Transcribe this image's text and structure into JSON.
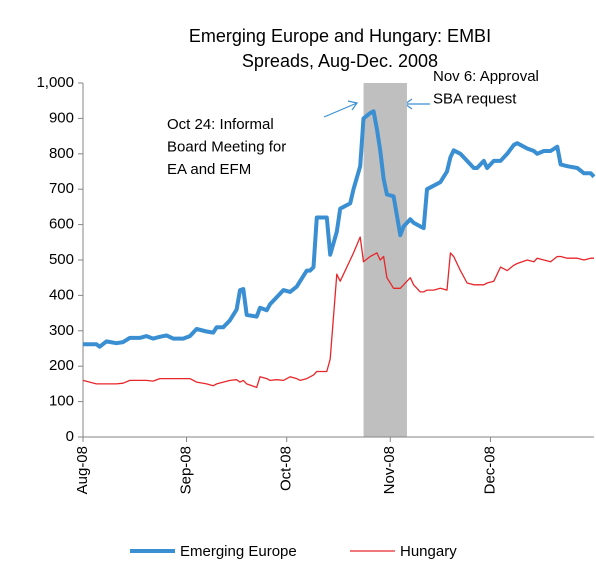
{
  "chart_data": {
    "type": "line",
    "title": [
      "Emerging Europe and Hungary: EMBI",
      "Spreads, Aug-Dec. 2008"
    ],
    "annotations": [
      {
        "lines": [
          "Oct 24: Informal",
          "Board Meeting for",
          "EA and EFM"
        ]
      },
      {
        "lines": [
          "Nov 6: Approval",
          "SBA request"
        ]
      }
    ],
    "shaded_x": [
      84,
      97
    ],
    "x": [
      0,
      4,
      5,
      7,
      10,
      12,
      14,
      17,
      19,
      21,
      23,
      25,
      27,
      30,
      32,
      34,
      37,
      39,
      40,
      42,
      44,
      46,
      47,
      48,
      49,
      52,
      53,
      55,
      56,
      58,
      60,
      62,
      64,
      65,
      67,
      68,
      69,
      70,
      73,
      74,
      76,
      77,
      80,
      81,
      83,
      84,
      86,
      87,
      88,
      89,
      90,
      91,
      93,
      95,
      96,
      98,
      99,
      101,
      102,
      103,
      105,
      107,
      109,
      110,
      111,
      113,
      115,
      117,
      118,
      120,
      121,
      123,
      125,
      127,
      129,
      130,
      133,
      135,
      136,
      138,
      140,
      142,
      143,
      145,
      148,
      150,
      152,
      153
    ],
    "series": [
      {
        "name": "Emerging Europe",
        "color": "#3a8fd2",
        "values": [
          262,
          262,
          255,
          270,
          265,
          268,
          280,
          280,
          285,
          278,
          283,
          287,
          278,
          278,
          285,
          305,
          298,
          295,
          310,
          310,
          330,
          360,
          415,
          418,
          345,
          340,
          365,
          358,
          375,
          395,
          415,
          410,
          425,
          440,
          470,
          470,
          480,
          620,
          620,
          515,
          580,
          645,
          660,
          700,
          765,
          900,
          915,
          920,
          870,
          810,
          730,
          685,
          680,
          570,
          595,
          615,
          605,
          595,
          590,
          700,
          710,
          720,
          750,
          790,
          810,
          800,
          780,
          760,
          760,
          780,
          760,
          780,
          780,
          800,
          825,
          830,
          815,
          808,
          800,
          808,
          808,
          820,
          770,
          765,
          760,
          745,
          745,
          735
        ]
      },
      {
        "name": "Hungary",
        "color": "#e8262a",
        "values": [
          160,
          150,
          150,
          150,
          150,
          152,
          160,
          160,
          160,
          158,
          165,
          165,
          165,
          165,
          165,
          155,
          150,
          145,
          150,
          155,
          160,
          162,
          155,
          160,
          150,
          140,
          170,
          165,
          160,
          162,
          160,
          170,
          165,
          160,
          165,
          170,
          175,
          185,
          185,
          220,
          460,
          440,
          500,
          520,
          565,
          495,
          510,
          515,
          520,
          500,
          510,
          450,
          420,
          420,
          430,
          450,
          430,
          410,
          410,
          415,
          415,
          420,
          415,
          520,
          510,
          470,
          435,
          430,
          430,
          430,
          435,
          440,
          480,
          470,
          485,
          490,
          500,
          495,
          505,
          500,
          495,
          510,
          510,
          505,
          505,
          500,
          505,
          505
        ]
      }
    ],
    "xlim": [
      0,
      153
    ],
    "xticks": [
      {
        "value": 0,
        "label": "Aug-08"
      },
      {
        "value": 31,
        "label": "Sep-08"
      },
      {
        "value": 61,
        "label": "Oct-08"
      },
      {
        "value": 92,
        "label": "Nov-08"
      },
      {
        "value": 122,
        "label": "Dec-08"
      }
    ],
    "ylim": [
      0,
      1000
    ],
    "yticks": [
      0,
      100,
      200,
      300,
      400,
      500,
      600,
      700,
      800,
      900,
      {
        "value": 1000,
        "label": "1,000"
      }
    ],
    "grid": false
  }
}
